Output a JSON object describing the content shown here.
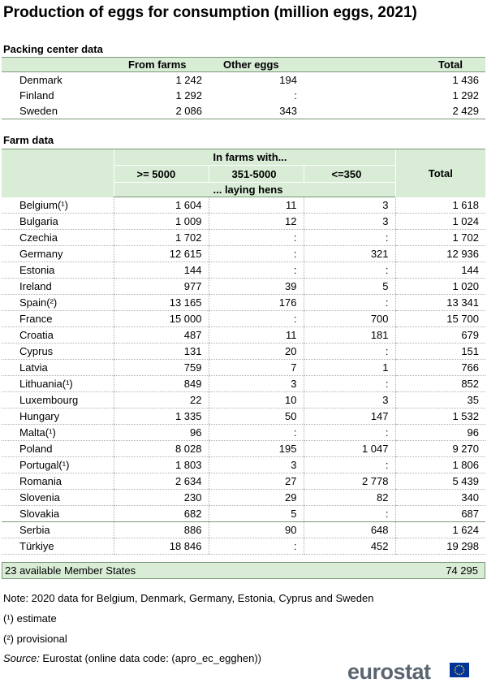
{
  "title": "Production of eggs for consumption (million eggs, 2021)",
  "packing": {
    "section_title": "Packing center data",
    "headers": [
      "",
      "From farms",
      "Other eggs",
      "Total"
    ],
    "rows": [
      {
        "name": "Denmark",
        "from_farms": "1 242",
        "other": "194",
        "total": "1 436"
      },
      {
        "name": "Finland",
        "from_farms": "1 292",
        "other": ":",
        "total": "1 292"
      },
      {
        "name": "Sweden",
        "from_farms": "2 086",
        "other": "343",
        "total": "2 429"
      }
    ]
  },
  "farm": {
    "section_title": "Farm data",
    "group_header": "In farms with...",
    "col_ge5000": ">= 5000",
    "col_351": "351-5000",
    "col_le350": "<=350",
    "col_total": "Total",
    "sub_header": "... laying hens",
    "rows": [
      {
        "name": "Belgium(¹)",
        "a": "1 604",
        "b": "11",
        "c": "3",
        "t": "1 618"
      },
      {
        "name": "Bulgaria",
        "a": "1 009",
        "b": "12",
        "c": "3",
        "t": "1 024"
      },
      {
        "name": "Czechia",
        "a": "1 702",
        "b": ":",
        "c": ":",
        "t": "1 702"
      },
      {
        "name": "Germany",
        "a": "12 615",
        "b": ":",
        "c": "321",
        "t": "12 936"
      },
      {
        "name": "Estonia",
        "a": "144",
        "b": ":",
        "c": ":",
        "t": "144"
      },
      {
        "name": "Ireland",
        "a": "977",
        "b": "39",
        "c": "5",
        "t": "1 020"
      },
      {
        "name": "Spain(²)",
        "a": "13 165",
        "b": "176",
        "c": ":",
        "t": "13 341"
      },
      {
        "name": "France",
        "a": "15 000",
        "b": ":",
        "c": "700",
        "t": "15 700"
      },
      {
        "name": "Croatia",
        "a": "487",
        "b": "11",
        "c": "181",
        "t": "679"
      },
      {
        "name": "Cyprus",
        "a": "131",
        "b": "20",
        "c": ":",
        "t": "151"
      },
      {
        "name": "Latvia",
        "a": "759",
        "b": "7",
        "c": "1",
        "t": "766"
      },
      {
        "name": "Lithuania(¹)",
        "a": "849",
        "b": "3",
        "c": ":",
        "t": "852"
      },
      {
        "name": "Luxembourg",
        "a": "22",
        "b": "10",
        "c": "3",
        "t": "35"
      },
      {
        "name": "Hungary",
        "a": "1 335",
        "b": "50",
        "c": "147",
        "t": "1 532"
      },
      {
        "name": "Malta(¹)",
        "a": "96",
        "b": ":",
        "c": ":",
        "t": "96"
      },
      {
        "name": "Poland",
        "a": "8 028",
        "b": "195",
        "c": "1 047",
        "t": "9 270"
      },
      {
        "name": "Portugal(¹)",
        "a": "1 803",
        "b": "3",
        "c": ":",
        "t": "1 806"
      },
      {
        "name": "Romania",
        "a": "2 634",
        "b": "27",
        "c": "2 778",
        "t": "5 439"
      },
      {
        "name": "Slovenia",
        "a": "230",
        "b": "29",
        "c": "82",
        "t": "340"
      },
      {
        "name": "Slovakia",
        "a": "682",
        "b": "5",
        "c": ":",
        "t": "687"
      },
      {
        "name": "Serbia",
        "a": "886",
        "b": "90",
        "c": "648",
        "t": "1 624"
      },
      {
        "name": "Türkiye",
        "a": "18 846",
        "b": ":",
        "c": "452",
        "t": "19 298"
      }
    ],
    "summary_label": "23 available Member States",
    "summary_total": "74 295"
  },
  "notes": {
    "note": "Note: 2020 data for Belgium, Denmark, Germany, Estonia, Cyprus and Sweden",
    "estimate": "(¹) estimate",
    "provisional": "(²) provisional",
    "source_label": "Source:",
    "source_text": " Eurostat (online data code: (apro_ec_egghen))"
  },
  "logo": {
    "text": "eurostat",
    "flag_color": "#003399",
    "star_color": "#ffcc00"
  },
  "colors": {
    "header_bg": "#d8ecd6",
    "border": "#7a9a78"
  }
}
